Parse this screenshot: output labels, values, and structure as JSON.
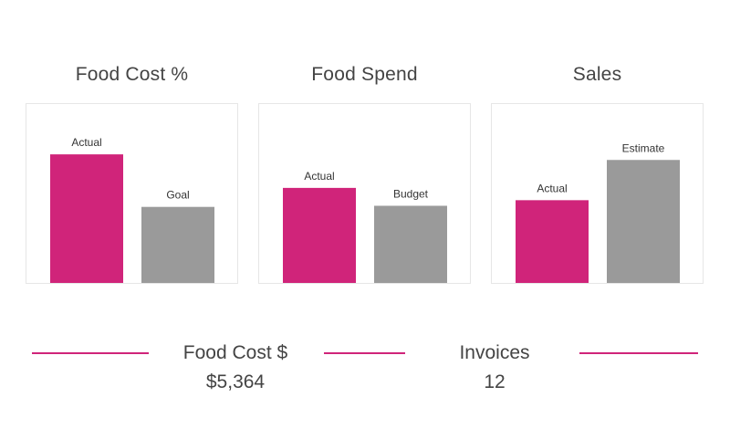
{
  "colors": {
    "actual": "#d0247a",
    "comparison": "#9a9a9a",
    "accent_line": "#d0247a"
  },
  "chart_data": [
    {
      "type": "bar",
      "title": "Food Cost %",
      "categories": [
        "Actual",
        "Goal"
      ],
      "values": [
        115,
        68
      ],
      "ylim": [
        0,
        160
      ]
    },
    {
      "type": "bar",
      "title": "Food Spend",
      "categories": [
        "Actual",
        "Budget"
      ],
      "values": [
        85,
        69
      ],
      "ylim": [
        0,
        160
      ]
    },
    {
      "type": "bar",
      "title": "Sales",
      "categories": [
        "Actual",
        "Estimate"
      ],
      "values": [
        74,
        110
      ],
      "ylim": [
        0,
        160
      ]
    }
  ],
  "kpis": {
    "food_cost": {
      "label": "Food Cost $",
      "value": "$5,364"
    },
    "invoices": {
      "label": "Invoices",
      "value": "12"
    }
  }
}
